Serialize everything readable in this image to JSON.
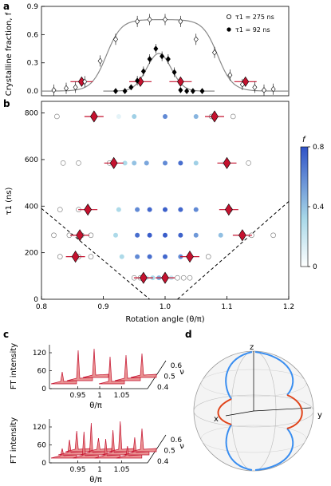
{
  "panels": {
    "a": "a",
    "b": "b",
    "c": "c",
    "d": "d"
  },
  "chart_data": [
    {
      "panel": "a",
      "type": "scatter",
      "ylabel": "Crystalline fraction, f",
      "xlim": [
        0.8,
        1.2
      ],
      "ylim": [
        -0.05,
        0.9
      ],
      "yticks": [
        "0.0",
        "0.3",
        "0.6",
        "0.9"
      ],
      "yticks_values": [
        0.0,
        0.3,
        0.6,
        0.9
      ],
      "legend_position": "top-right",
      "series": [
        {
          "name": "τ1 = 275 ns",
          "marker": "open-diamond",
          "x": [
            0.82,
            0.84,
            0.855,
            0.87,
            0.895,
            0.92,
            0.955,
            0.975,
            1.0,
            1.025,
            1.05,
            1.08,
            1.105,
            1.125,
            1.145,
            1.16,
            1.175
          ],
          "y": [
            0.01,
            0.03,
            0.04,
            0.1,
            0.32,
            0.55,
            0.74,
            0.76,
            0.76,
            0.74,
            0.55,
            0.41,
            0.17,
            0.07,
            0.04,
            0.01,
            0.02
          ]
        },
        {
          "name": "τ1 = 92 ns",
          "marker": "filled-diamond",
          "x": [
            0.92,
            0.935,
            0.945,
            0.955,
            0.965,
            0.975,
            0.985,
            0.995,
            1.005,
            1.015,
            1.025,
            1.035,
            1.045,
            1.06
          ],
          "y": [
            0.0,
            0.0,
            0.04,
            0.11,
            0.21,
            0.34,
            0.45,
            0.37,
            0.34,
            0.2,
            0.01,
            0.0,
            0.0,
            0.0
          ]
        }
      ],
      "fit_curve_mins": "gray sigmoid plateau ~0.76 between 0.92 and 1.07",
      "red_markers": {
        "x": [
          0.865,
          0.96,
          1.025,
          1.13
        ],
        "y": [
          0.1,
          0.1,
          0.1,
          0.1
        ]
      }
    },
    {
      "panel": "b",
      "type": "scatter",
      "xlabel": "Rotation angle (θ/π)",
      "ylabel": "τ1 (ns)",
      "xlim": [
        0.8,
        1.2
      ],
      "ylim": [
        0,
        850
      ],
      "xticks": [
        "0.8",
        "0.9",
        "1.0",
        "1.1",
        "1.2"
      ],
      "xticks_values": [
        0.8,
        0.9,
        1.0,
        1.1,
        1.2
      ],
      "yticks": [
        "0",
        "200",
        "400",
        "600",
        "800"
      ],
      "yticks_values": [
        0,
        200,
        400,
        600,
        800
      ],
      "colorbar": {
        "label": "f",
        "min": 0,
        "max": 0.8,
        "ticks": [
          "0",
          "0.4",
          "0.8"
        ],
        "ticks_values": [
          0,
          0.4,
          0.8
        ]
      },
      "rows": [
        {
          "tau": 92,
          "x": [
            0.95,
            0.96,
            0.97,
            0.98,
            0.99,
            1.0,
            1.01,
            1.02,
            1.03,
            1.04
          ],
          "f": [
            0.0,
            0.0,
            0.2,
            0.3,
            0.45,
            0.35,
            0.2,
            0.0,
            0.0,
            0.0
          ]
        },
        {
          "tau": 183,
          "x": [
            0.83,
            0.86,
            0.88,
            0.93,
            0.955,
            0.975,
            1.0,
            1.025,
            1.04,
            1.07
          ],
          "f": [
            0.0,
            0.0,
            0.0,
            0.3,
            0.6,
            0.7,
            0.72,
            0.6,
            0.3,
            0.0
          ]
        },
        {
          "tau": 275,
          "x": [
            0.82,
            0.845,
            0.865,
            0.88,
            0.92,
            0.955,
            0.975,
            1.0,
            1.025,
            1.05,
            1.09,
            1.125,
            1.14,
            1.175
          ],
          "f": [
            0.0,
            0.0,
            0.0,
            0.0,
            0.3,
            0.7,
            0.76,
            0.76,
            0.74,
            0.55,
            0.41,
            0.07,
            0.0,
            0.0
          ]
        },
        {
          "tau": 385,
          "x": [
            0.83,
            0.86,
            0.875,
            0.925,
            0.955,
            0.975,
            1.0,
            1.025,
            1.05,
            1.105
          ],
          "f": [
            0.0,
            0.0,
            0.0,
            0.3,
            0.6,
            0.72,
            0.75,
            0.72,
            0.6,
            0.0
          ]
        },
        {
          "tau": 585,
          "x": [
            0.835,
            0.86,
            0.91,
            0.935,
            0.95,
            0.97,
            1.0,
            1.025,
            1.05,
            1.095,
            1.135
          ],
          "f": [
            0.0,
            0.0,
            0.0,
            0.3,
            0.4,
            0.5,
            0.6,
            0.7,
            0.35,
            0.1,
            0.0
          ]
        },
        {
          "tau": 785,
          "x": [
            0.825,
            0.885,
            0.925,
            0.95,
            1.0,
            1.05,
            1.075,
            1.11
          ],
          "f": [
            0.0,
            0.0,
            0.1,
            0.35,
            0.6,
            0.45,
            0.0,
            0.0
          ]
        }
      ],
      "red_markers": {
        "x": [
          0.885,
          0.917,
          0.875,
          0.862,
          0.855,
          0.965,
          1.0,
          1.04,
          1.1,
          1.125,
          1.103,
          1.08
        ],
        "y": [
          785,
          585,
          385,
          275,
          183,
          92,
          92,
          183,
          585,
          275,
          385,
          785
        ]
      },
      "dashed_lines": "two dashed diagonal lines forming a V from (0.8, ~390) to (0.975, 0) and from (1.02, 0) to (1.2, ~420)"
    },
    {
      "panel": "c",
      "type": "area",
      "ylabel": "FT intensity",
      "xlabel": "θ/π",
      "zlabel": "ν",
      "yticks": [
        "0",
        "60",
        "120"
      ],
      "yticks_values": [
        0,
        60,
        120
      ],
      "xticks": [
        "0.95",
        "1",
        "1.05"
      ],
      "xticks_values": [
        0.95,
        1,
        1.05
      ],
      "zticks": [
        "0.4",
        "0.5",
        "0.6"
      ],
      "zticks_values": [
        0.4,
        0.5,
        0.6
      ]
    }
  ]
}
